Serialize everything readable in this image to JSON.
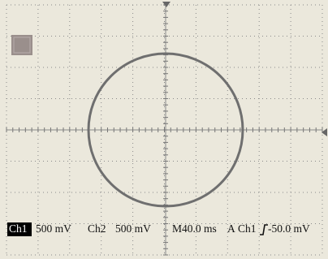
{
  "status_bar": {
    "channel_1": "Ch1",
    "channel_1_scale": "500 mV",
    "channel_2": "Ch2",
    "channel_2_scale": "500 mV",
    "timebase": "M40.0 ms",
    "trigger_mode": "A",
    "trigger_source": "Ch1",
    "trigger_level": "-50.0 mV"
  }
}
